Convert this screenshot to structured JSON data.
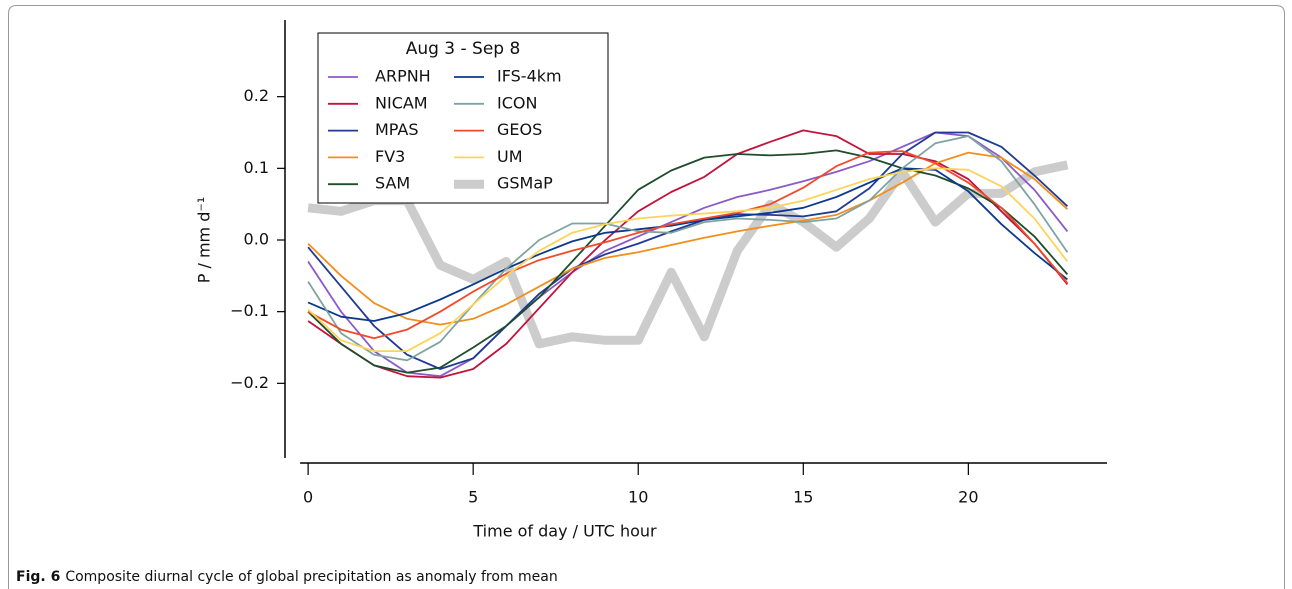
{
  "chart_data": {
    "type": "line",
    "xlabel": "Time of day / UTC hour",
    "ylabel": "P / mm d⁻¹",
    "legend_title": "Aug 3 - Sep 8",
    "legend_position": "upper left",
    "caption_label": "Fig. 6",
    "caption": "Composite diurnal cycle of global precipitation as anomaly from mean",
    "x": [
      0,
      1,
      2,
      3,
      4,
      5,
      6,
      7,
      8,
      9,
      10,
      11,
      12,
      13,
      14,
      15,
      16,
      17,
      18,
      19,
      20,
      21,
      22,
      23
    ],
    "xlim": [
      -0.7,
      24.2
    ],
    "xticks": [
      0,
      5,
      10,
      15,
      20
    ],
    "ylim": [
      -0.3,
      0.3
    ],
    "yticks": [
      0.2,
      0.1,
      {
        "value": 0,
        "label": "0.0"
      },
      {
        "value": -0.1,
        "label": "−0.1"
      },
      {
        "value": -0.2,
        "label": "−0.2"
      }
    ],
    "series": [
      {
        "name": "ARPNH",
        "color": "#8a5ac8",
        "line_width": 1.8,
        "values": [
          -0.03,
          -0.1,
          -0.155,
          -0.185,
          -0.19,
          -0.165,
          -0.12,
          -0.08,
          -0.045,
          -0.015,
          0.005,
          0.025,
          0.045,
          0.06,
          0.07,
          0.082,
          0.095,
          0.11,
          0.13,
          0.15,
          0.145,
          0.115,
          0.07,
          0.012
        ]
      },
      {
        "name": "NICAM",
        "color": "#c0143c",
        "line_width": 1.8,
        "values": [
          -0.113,
          -0.145,
          -0.175,
          -0.19,
          -0.192,
          -0.18,
          -0.145,
          -0.095,
          -0.045,
          0.0,
          0.04,
          0.067,
          0.088,
          0.12,
          0.137,
          0.153,
          0.145,
          0.12,
          0.12,
          0.11,
          0.085,
          0.04,
          -0.005,
          -0.062
        ]
      },
      {
        "name": "MPAS",
        "color": "#1f3a93",
        "line_width": 1.8,
        "values": [
          -0.01,
          -0.065,
          -0.12,
          -0.16,
          -0.18,
          -0.165,
          -0.12,
          -0.075,
          -0.04,
          -0.02,
          -0.005,
          0.012,
          0.028,
          0.036,
          0.035,
          0.033,
          0.04,
          0.072,
          0.12,
          0.15,
          0.15,
          0.13,
          0.09,
          0.047
        ]
      },
      {
        "name": "FV3",
        "color": "#f28e1c",
        "line_width": 1.8,
        "values": [
          -0.005,
          -0.05,
          -0.088,
          -0.11,
          -0.118,
          -0.11,
          -0.09,
          -0.065,
          -0.04,
          -0.025,
          -0.017,
          -0.007,
          0.003,
          0.012,
          0.02,
          0.027,
          0.035,
          0.055,
          0.08,
          0.107,
          0.122,
          0.115,
          0.085,
          0.043
        ]
      },
      {
        "name": "SAM",
        "color": "#1e4d2b",
        "line_width": 1.8,
        "values": [
          -0.1,
          -0.145,
          -0.175,
          -0.185,
          -0.178,
          -0.15,
          -0.12,
          -0.08,
          -0.03,
          0.02,
          0.07,
          0.097,
          0.115,
          0.12,
          0.118,
          0.12,
          0.125,
          0.115,
          0.1,
          0.09,
          0.072,
          0.045,
          0.005,
          -0.048
        ]
      },
      {
        "name": "IFS-4km",
        "color": "#0b3a8c",
        "line_width": 1.8,
        "values": [
          -0.087,
          -0.107,
          -0.113,
          -0.102,
          -0.083,
          -0.062,
          -0.04,
          -0.02,
          -0.002,
          0.01,
          0.015,
          0.02,
          0.028,
          0.033,
          0.038,
          0.045,
          0.06,
          0.08,
          0.1,
          0.098,
          0.068,
          0.022,
          -0.018,
          -0.055
        ]
      },
      {
        "name": "ICON",
        "color": "#7fa3a3",
        "line_width": 1.8,
        "values": [
          -0.058,
          -0.13,
          -0.16,
          -0.168,
          -0.142,
          -0.09,
          -0.04,
          0.0,
          0.023,
          0.023,
          0.012,
          0.01,
          0.025,
          0.03,
          0.028,
          0.025,
          0.03,
          0.055,
          0.1,
          0.135,
          0.145,
          0.11,
          0.05,
          -0.017
        ]
      },
      {
        "name": "GEOS",
        "color": "#f04a2a",
        "line_width": 1.8,
        "values": [
          -0.1,
          -0.125,
          -0.137,
          -0.125,
          -0.1,
          -0.072,
          -0.047,
          -0.028,
          -0.015,
          -0.003,
          0.01,
          0.022,
          0.03,
          0.038,
          0.05,
          0.073,
          0.103,
          0.122,
          0.124,
          0.107,
          0.08,
          0.045,
          -0.005,
          -0.06
        ]
      },
      {
        "name": "UM",
        "color": "#fcd45a",
        "line_width": 1.8,
        "values": [
          -0.097,
          -0.14,
          -0.155,
          -0.155,
          -0.13,
          -0.09,
          -0.05,
          -0.015,
          0.01,
          0.022,
          0.03,
          0.034,
          0.037,
          0.04,
          0.045,
          0.055,
          0.07,
          0.085,
          0.095,
          0.1,
          0.098,
          0.075,
          0.03,
          -0.03
        ]
      },
      {
        "name": "GSMaP",
        "color": "#cccccc",
        "line_width": 9,
        "values": [
          0.045,
          0.04,
          0.055,
          0.055,
          -0.035,
          -0.055,
          -0.03,
          -0.145,
          -0.135,
          -0.14,
          -0.14,
          -0.045,
          -0.135,
          -0.015,
          0.05,
          0.025,
          -0.01,
          0.03,
          0.095,
          0.025,
          0.065,
          0.065,
          0.095,
          0.105
        ]
      }
    ]
  }
}
